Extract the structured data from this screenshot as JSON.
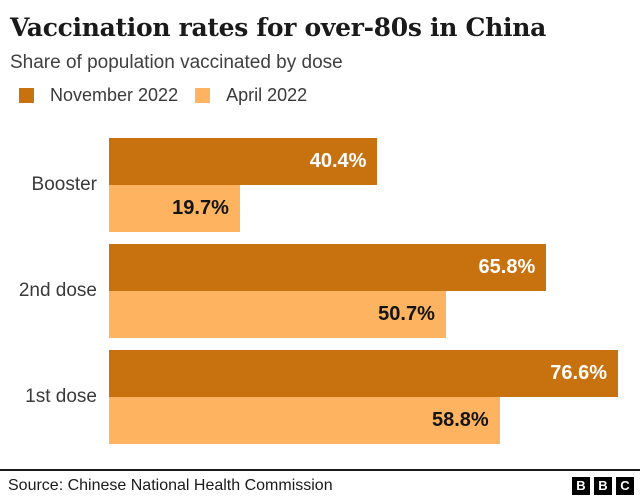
{
  "header": {
    "title": "Vaccination rates for over-80s in China",
    "subtitle": "Share of population vaccinated by dose"
  },
  "legend": [
    {
      "label": "November 2022",
      "color": "#c8720f"
    },
    {
      "label": "April 2022",
      "color": "#fdb35f"
    }
  ],
  "chart_data": {
    "type": "bar",
    "orientation": "horizontal",
    "title": "Vaccination rates for over-80s in China",
    "subtitle": "Share of population vaccinated by dose",
    "unit": "%",
    "categories": [
      "Booster",
      "2nd dose",
      "1st dose"
    ],
    "series": [
      {
        "name": "November 2022",
        "color": "#c8720f",
        "values": [
          40.4,
          65.8,
          76.6
        ],
        "labels": [
          "40.4%",
          "65.8%",
          "76.6%"
        ]
      },
      {
        "name": "April 2022",
        "color": "#fdb35f",
        "values": [
          19.7,
          50.7,
          58.8
        ],
        "labels": [
          "19.7%",
          "50.7%",
          "58.8%"
        ]
      }
    ],
    "scale_max": 76.6,
    "axis_shown": false,
    "value_labels_position": "inside-end",
    "legend_position": "top"
  },
  "footer": {
    "source": "Source: Chinese National Health Commission",
    "logo_letters": [
      "B",
      "B",
      "C"
    ]
  },
  "colors": {
    "november_bar": "#c8720f",
    "april_bar": "#fdb35f",
    "title_text": "#1a1a1a",
    "body_text": "#3a3a3a",
    "value_on_dark": "#ffffff",
    "value_on_light": "#141414",
    "divider": "#1a1a1a"
  }
}
